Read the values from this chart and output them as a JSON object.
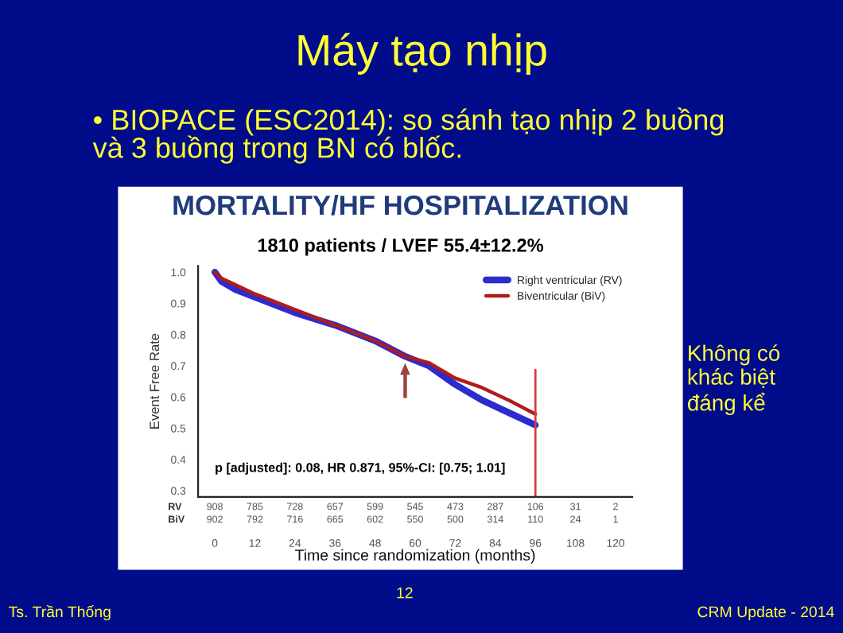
{
  "chart_data": {
    "type": "line",
    "title": "MORTALITY/HF HOSPITALIZATION",
    "subtitle": "1810 patients / LVEF 55.4±12.2%",
    "xlabel": "Time since randomization (months)",
    "ylabel": "Event Free Rate",
    "xlim": [
      -5,
      125
    ],
    "ylim": [
      0.28,
      1.02
    ],
    "xticks": [
      0,
      12,
      24,
      36,
      48,
      60,
      72,
      84,
      96,
      108,
      120
    ],
    "yticks": [
      0.3,
      0.4,
      0.5,
      0.6,
      0.7,
      0.8,
      0.9,
      {
        "value": 1.0,
        "label": "1.0"
      }
    ],
    "series": [
      {
        "name": "Right ventricular (RV)",
        "color": "#2b2bd0",
        "x": [
          0,
          2,
          6,
          12,
          24,
          36,
          48,
          57,
          64,
          72,
          80,
          88,
          96
        ],
        "values": [
          1.0,
          0.97,
          0.945,
          0.92,
          0.87,
          0.83,
          0.78,
          0.73,
          0.7,
          0.64,
          0.59,
          0.55,
          0.51
        ]
      },
      {
        "name": "Biventricular (BiV)",
        "color": "#b01c1c",
        "x": [
          0,
          2,
          6,
          12,
          24,
          36,
          48,
          57,
          64,
          72,
          80,
          88,
          96
        ],
        "values": [
          1.0,
          0.98,
          0.96,
          0.93,
          0.88,
          0.83,
          0.78,
          0.73,
          0.71,
          0.66,
          0.63,
          0.59,
          0.545
        ]
      }
    ],
    "ref_lines": [
      {
        "axis": "x",
        "value": 96,
        "color": "#d04040"
      }
    ],
    "legend": "top right",
    "grid": false,
    "marker": "none",
    "line_style": "solid",
    "annotations": [
      "Máy tạo nhịp",
      "• BIOPACE (ESC2014): so sánh tạo nhịp 2 buồng và 3 buồng trong BN có blốc.",
      "Không có khác biệt đáng kể",
      "Ts. Trần Thống",
      "12",
      "CRM Update - 2014",
      "p [adjusted]: 0.08, HR 0.871, 95%-CI: [0.75; 1.01]",
      "RV 908 785 728 657 599 545 473 287 106 31 2",
      "BiV 902 792 716 665 602 550 500 314 110 24 1"
    ]
  }
}
